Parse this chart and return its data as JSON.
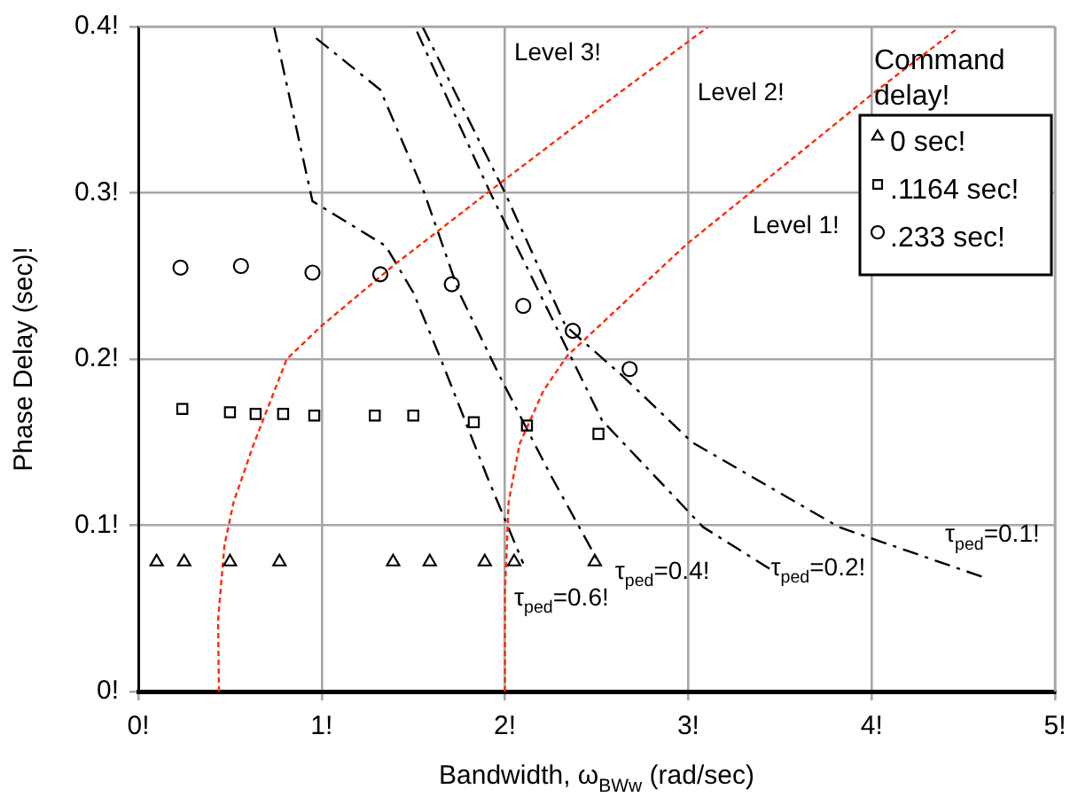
{
  "chart_data": {
    "type": "scatter",
    "xlabel": "Bandwidth, ω$_{BWw}$ (rad/sec)",
    "ylabel": "Phase Delay (sec)!",
    "legend_title": "Command delay!",
    "legend": "top right",
    "grid": true,
    "xlim": [
      0,
      5
    ],
    "ylim": [
      0,
      0.4
    ],
    "xticks": [
      {
        "value": 0,
        "label": "0!"
      },
      {
        "value": 1,
        "label": "1!"
      },
      {
        "value": 2,
        "label": "2!"
      },
      {
        "value": 3,
        "label": "3!"
      },
      {
        "value": 4,
        "label": "4!"
      },
      {
        "value": 5,
        "label": "5!"
      }
    ],
    "yticks": [
      {
        "value": 0,
        "label": "0!"
      },
      {
        "value": 0.1,
        "label": "0.1!"
      },
      {
        "value": 0.2,
        "label": "0.2!"
      },
      {
        "value": 0.3,
        "label": "0.3!"
      },
      {
        "value": 0.4,
        "label": "0.4!"
      }
    ],
    "series": [
      {
        "name": "0 sec!",
        "type": "scatter",
        "marker": "triangle",
        "color": "#000000",
        "x": [
          0.1,
          0.25,
          0.5,
          0.77,
          1.39,
          1.59,
          1.89,
          2.05,
          2.49
        ],
        "values": [
          0.078,
          0.078,
          0.078,
          0.078,
          0.078,
          0.078,
          0.078,
          0.078,
          0.078
        ]
      },
      {
        "name": ".1164 sec!",
        "type": "scatter",
        "marker": "square",
        "color": "#000000",
        "x": [
          0.24,
          0.5,
          0.64,
          0.79,
          0.96,
          1.29,
          1.5,
          1.83,
          2.12,
          2.51
        ],
        "values": [
          0.17,
          0.168,
          0.167,
          0.167,
          0.166,
          0.166,
          0.166,
          0.162,
          0.16,
          0.155
        ]
      },
      {
        "name": ".233 sec!",
        "type": "scatter",
        "marker": "circle",
        "color": "#000000",
        "x": [
          0.23,
          0.56,
          0.95,
          1.32,
          1.71,
          2.1,
          2.37,
          2.68
        ],
        "values": [
          0.255,
          0.256,
          0.252,
          0.251,
          0.245,
          0.232,
          0.217,
          0.194
        ]
      },
      {
        "type": "line",
        "line_style": "dotted",
        "color": "#ff2a00",
        "x": [
          0.44,
          0.435,
          0.47,
          0.52,
          0.63,
          0.81,
          1.0,
          1.4,
          1.94,
          2.5,
          3.11
        ],
        "values": [
          0,
          0.043,
          0.088,
          0.114,
          0.149,
          0.2,
          0.22,
          0.257,
          0.303,
          0.35,
          0.4
        ]
      },
      {
        "type": "line",
        "line_style": "dotted",
        "color": "#ff2a00",
        "x": [
          2.0,
          2.0,
          2.02,
          2.08,
          2.21,
          2.34,
          2.99,
          4.01,
          4.47
        ],
        "values": [
          0,
          0.06,
          0.114,
          0.149,
          0.181,
          0.202,
          0.269,
          0.36,
          0.399
        ]
      },
      {
        "type": "line",
        "line_style": "dashed",
        "color": "#000000",
        "x": [
          0.74,
          0.84,
          0.95,
          1.35,
          1.5,
          1.65,
          1.9,
          2.1
        ],
        "values": [
          0.4,
          0.35,
          0.295,
          0.268,
          0.24,
          0.2,
          0.13,
          0.077
        ]
      },
      {
        "type": "line",
        "line_style": "dashed",
        "color": "#000000",
        "x": [
          0.97,
          1.32,
          1.56,
          1.75,
          1.97,
          2.25,
          2.5
        ],
        "values": [
          0.393,
          0.362,
          0.3,
          0.24,
          0.19,
          0.13,
          0.08
        ]
      },
      {
        "type": "line",
        "line_style": "dashed",
        "color": "#000000",
        "x": [
          1.52,
          1.92,
          2.41,
          2.53,
          3.08,
          3.47
        ],
        "values": [
          0.397,
          0.3,
          0.19,
          0.163,
          0.099,
          0.072
        ]
      },
      {
        "type": "line",
        "line_style": "dashed",
        "color": "#000000",
        "x": [
          1.55,
          2.0,
          2.33,
          2.64,
          3.02,
          3.82,
          4.63
        ],
        "values": [
          0.4,
          0.3,
          0.22,
          0.19,
          0.15,
          0.099,
          0.068
        ]
      }
    ],
    "annotations": [
      "Level 3!",
      "Level 2!",
      "Level 1!",
      "τ$_{ped}$=0.6!",
      "τ$_{ped}$=0.4!",
      "τ$_{ped}$=0.2!",
      "τ$_{ped}$=0.1!"
    ]
  }
}
